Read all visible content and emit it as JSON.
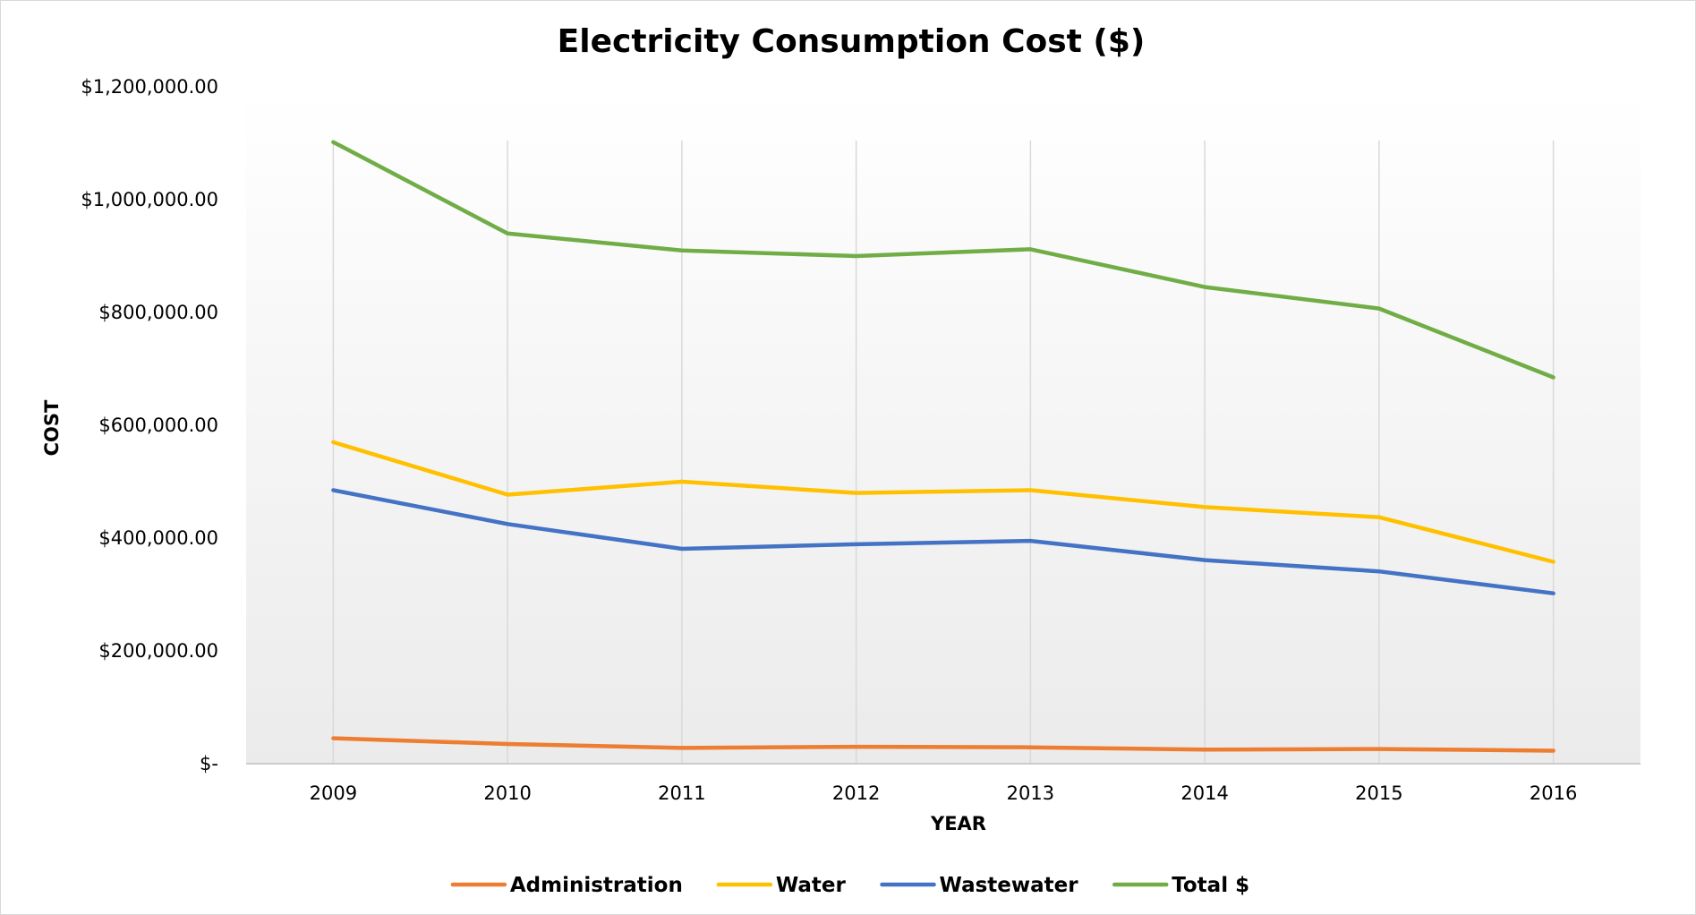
{
  "chart_data": {
    "type": "line",
    "title": "Electricity Consumption Cost ($)",
    "xlabel": "YEAR",
    "ylabel": "COST",
    "categories": [
      "2009",
      "2010",
      "2011",
      "2012",
      "2013",
      "2014",
      "2015",
      "2016"
    ],
    "ylim": [
      0,
      1200000
    ],
    "y_ticks": [
      0,
      200000,
      400000,
      600000,
      800000,
      1000000,
      1200000
    ],
    "y_tick_labels": [
      "$-",
      "$200,000.00",
      "$400,000.00",
      "$600,000.00",
      "$800,000.00",
      "$1,000,000.00",
      "$1,200,000.00"
    ],
    "grid": "vertical",
    "legend_position": "bottom",
    "series": [
      {
        "name": "Administration",
        "color": "#ED7D31",
        "values": [
          45000,
          35000,
          28000,
          30000,
          29000,
          25000,
          26000,
          23000
        ]
      },
      {
        "name": "Water",
        "color": "#FFC000",
        "values": [
          570000,
          477000,
          500000,
          480000,
          485000,
          455000,
          437000,
          358000
        ]
      },
      {
        "name": "Wastewater",
        "color": "#4472C4",
        "values": [
          485000,
          425000,
          381000,
          389000,
          395000,
          361000,
          341000,
          302000
        ]
      },
      {
        "name": "Total $",
        "color": "#70AD47",
        "values": [
          1102000,
          940000,
          910000,
          900000,
          912000,
          845000,
          807000,
          685000
        ]
      }
    ]
  }
}
